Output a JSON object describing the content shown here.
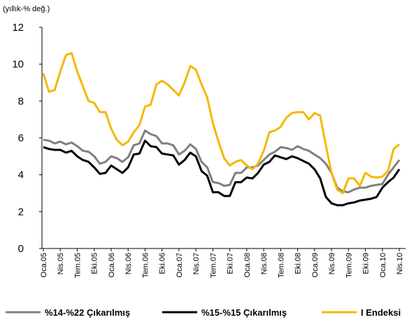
{
  "chart_data": {
    "type": "line",
    "y_label": "(yıllık-% değ.)",
    "categories": [
      "Oca.05",
      null,
      null,
      "Nis.05",
      null,
      null,
      "Tem.05",
      null,
      null,
      "Eki.05",
      null,
      null,
      "Oca.06",
      null,
      null,
      "Nis.06",
      null,
      null,
      "Tem.06",
      null,
      null,
      "Eki.06",
      null,
      null,
      "Oca.07",
      null,
      null,
      "Nis.07",
      null,
      null,
      "Tem.07",
      null,
      null,
      "Eki.07",
      null,
      null,
      "Oca.08",
      null,
      null,
      "Nis.08",
      null,
      null,
      "Tem.08",
      null,
      null,
      "Eki.08",
      null,
      null,
      "Oca.09",
      null,
      null,
      "Nis.09",
      null,
      null,
      "Tem.09",
      null,
      null,
      "Eki.09",
      null,
      null,
      "Oca.10",
      null,
      null,
      "Nis.10"
    ],
    "series": [
      {
        "name": "%14-%22 Çıkarılmış",
        "color": "#808080",
        "values": [
          5.9,
          5.85,
          5.7,
          5.8,
          5.65,
          5.75,
          5.55,
          5.3,
          5.25,
          5.0,
          4.6,
          4.7,
          5.0,
          4.9,
          4.7,
          4.95,
          5.6,
          5.7,
          6.4,
          6.2,
          6.1,
          5.7,
          5.7,
          5.6,
          5.1,
          5.3,
          5.65,
          5.4,
          4.7,
          4.4,
          3.6,
          3.55,
          3.4,
          3.45,
          4.1,
          4.1,
          4.4,
          4.4,
          4.5,
          4.8,
          5.1,
          5.25,
          5.5,
          5.45,
          5.35,
          5.55,
          5.4,
          5.3,
          5.1,
          4.9,
          4.6,
          4.1,
          3.3,
          3.1,
          3.05,
          3.2,
          3.3,
          3.3,
          3.4,
          3.45,
          3.5,
          4.0,
          4.4,
          4.8
        ]
      },
      {
        "name": "%15-%15 Çıkarılmış",
        "color": "#000000",
        "values": [
          5.5,
          5.4,
          5.35,
          5.35,
          5.2,
          5.3,
          5.0,
          4.8,
          4.7,
          4.4,
          4.05,
          4.1,
          4.5,
          4.3,
          4.1,
          4.4,
          5.1,
          5.15,
          5.85,
          5.55,
          5.5,
          5.15,
          5.1,
          5.05,
          4.55,
          4.8,
          5.2,
          5.0,
          4.2,
          3.95,
          3.05,
          3.05,
          2.85,
          2.85,
          3.6,
          3.6,
          3.85,
          3.8,
          4.1,
          4.55,
          4.7,
          5.05,
          4.95,
          4.85,
          5.0,
          4.9,
          4.75,
          4.6,
          4.3,
          3.8,
          2.8,
          2.45,
          2.35,
          2.35,
          2.45,
          2.5,
          2.6,
          2.65,
          2.7,
          2.8,
          3.3,
          3.6,
          3.85,
          4.3
        ]
      },
      {
        "name": "I Endeksi",
        "color": "#f5b800",
        "values": [
          9.5,
          8.5,
          8.6,
          9.6,
          10.5,
          10.6,
          9.6,
          8.8,
          8.0,
          7.9,
          7.4,
          7.4,
          6.5,
          5.9,
          5.6,
          5.8,
          6.3,
          6.7,
          7.7,
          7.8,
          8.9,
          9.1,
          8.9,
          8.6,
          8.3,
          9.0,
          9.9,
          9.7,
          8.9,
          8.2,
          6.8,
          5.8,
          4.9,
          4.5,
          4.7,
          4.8,
          4.5,
          4.3,
          4.6,
          5.3,
          6.3,
          6.4,
          6.6,
          7.1,
          7.35,
          7.4,
          7.4,
          7.0,
          7.35,
          7.2,
          5.6,
          4.1,
          3.2,
          3.0,
          3.8,
          3.8,
          3.4,
          4.1,
          3.9,
          3.85,
          3.9,
          4.2,
          5.4,
          5.65
        ]
      }
    ],
    "ylim": [
      0,
      12
    ],
    "yticks": [
      0,
      2,
      4,
      6,
      8,
      10,
      12
    ],
    "grid": false
  }
}
